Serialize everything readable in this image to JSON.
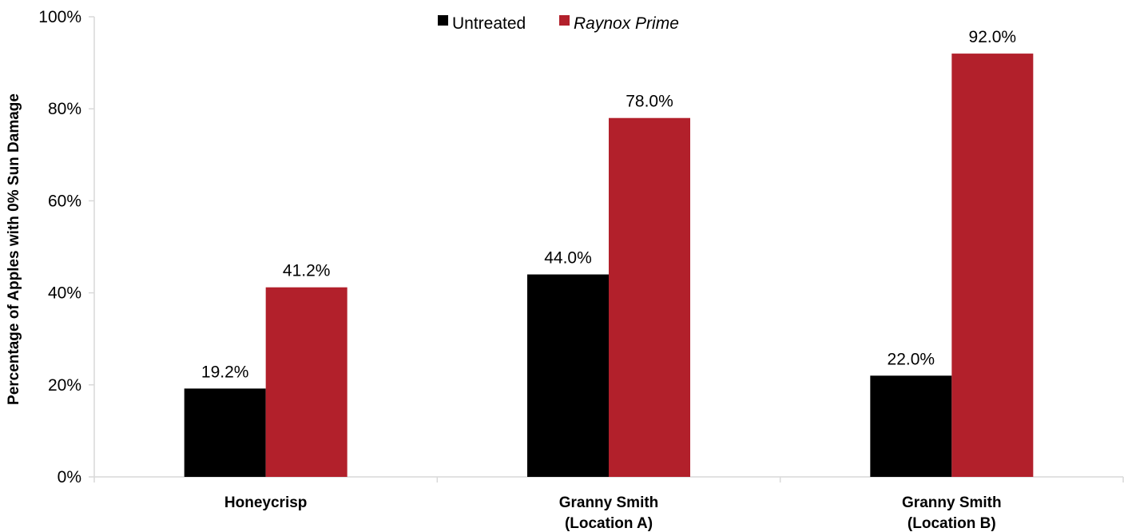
{
  "chart_data": {
    "type": "bar",
    "title": "",
    "xlabel": "",
    "ylabel": "Percentage of Apples with 0% Sun Damage",
    "ylim": [
      0,
      100
    ],
    "y_ticks": [
      "0%",
      "20%",
      "40%",
      "60%",
      "80%",
      "100%"
    ],
    "y_tick_values": [
      0,
      20,
      40,
      60,
      80,
      100
    ],
    "grid": false,
    "legend_position": "top-center",
    "categories": [
      [
        "Honeycrisp"
      ],
      [
        "Granny Smith",
        "(Location A)"
      ],
      [
        "Granny Smith",
        "(Location B)"
      ]
    ],
    "series": [
      {
        "name": "Untreated",
        "color": "#000000",
        "italic": false,
        "values": [
          19.2,
          44.0,
          22.0
        ],
        "labels": [
          "19.2%",
          "44.0%",
          "22.0%"
        ]
      },
      {
        "name": "Raynox Prime",
        "color": "#b2202b",
        "italic": true,
        "values": [
          41.2,
          78.0,
          92.0
        ],
        "labels": [
          "41.2%",
          "78.0%",
          "92.0%"
        ]
      }
    ]
  }
}
